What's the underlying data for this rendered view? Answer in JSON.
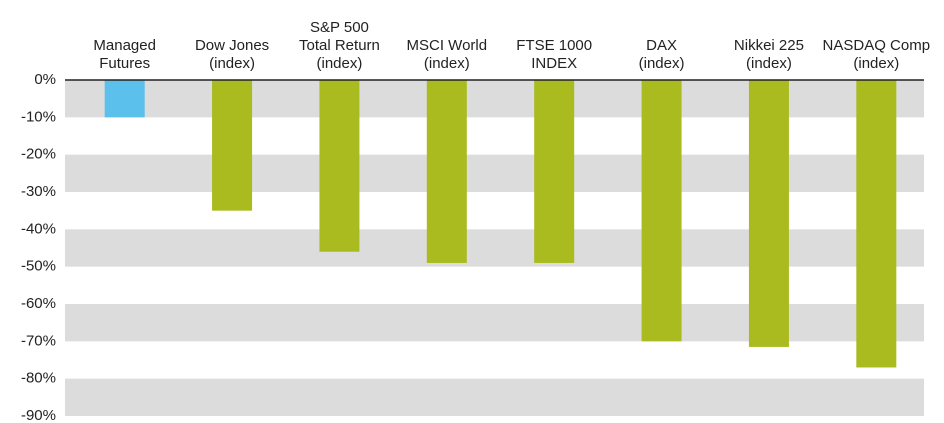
{
  "chart_data": {
    "type": "bar",
    "categories": [
      "Managed\nFutures",
      "Dow Jones\n(index)",
      "S&P 500\nTotal Return\n(index)",
      "MSCI World\n(index)",
      "FTSE 1000\nINDEX",
      "DAX\n(index)",
      "Nikkei 225\n(index)",
      "NASDAQ Comp\n(index)"
    ],
    "values": [
      -10,
      -35,
      -46,
      -49,
      -49,
      -70,
      -71.5,
      -77
    ],
    "colors": [
      "#5bc0eb",
      "#a9bb1e",
      "#a9bb1e",
      "#a9bb1e",
      "#a9bb1e",
      "#a9bb1e",
      "#a9bb1e",
      "#a9bb1e"
    ],
    "ylim": [
      -90,
      0
    ],
    "yticks": [
      {
        "value": 0,
        "label": "0%"
      },
      {
        "value": -10,
        "label": "-10%"
      },
      {
        "value": -20,
        "label": "-20%"
      },
      {
        "value": -30,
        "label": "-30%"
      },
      {
        "value": -40,
        "label": "-40%"
      },
      {
        "value": -50,
        "label": "-50%"
      },
      {
        "value": -60,
        "label": "-60%"
      },
      {
        "value": -70,
        "label": "-70%"
      },
      {
        "value": -80,
        "label": "-80%"
      },
      {
        "value": -90,
        "label": "-90%"
      }
    ],
    "grid": true
  }
}
